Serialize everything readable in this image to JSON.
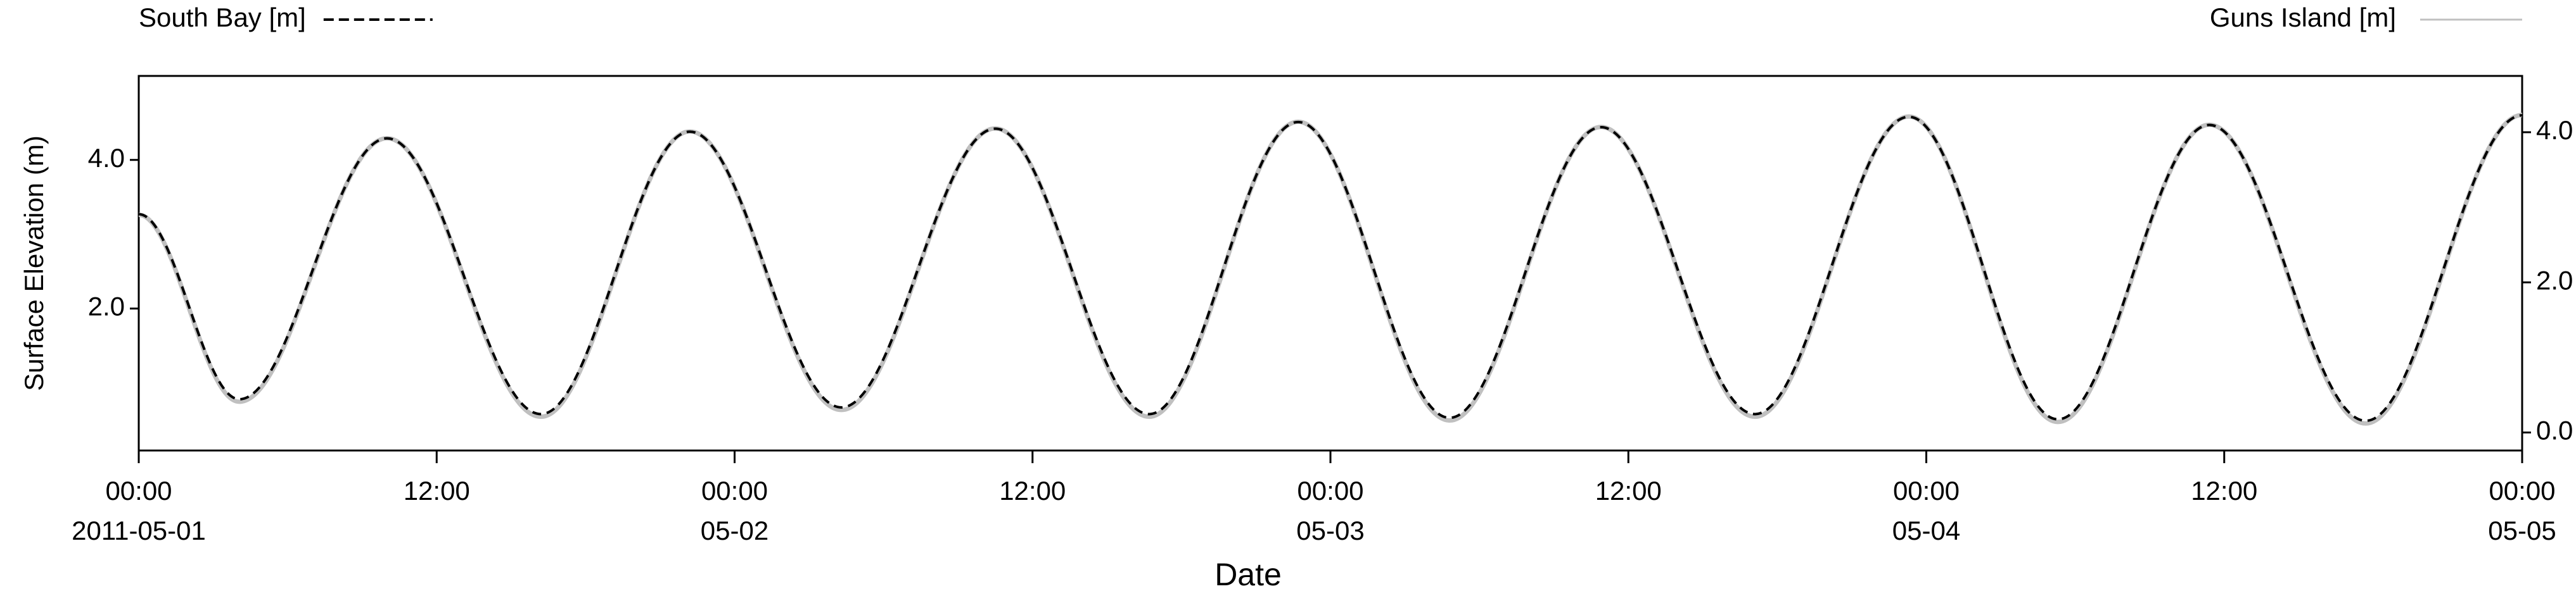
{
  "chart_data": {
    "type": "line",
    "y_label": "Surface Elevation (m)",
    "x_label": "Date",
    "x": [
      0,
      4.05,
      10.0,
      16.2,
      22.2,
      28.3,
      34.5,
      40.7,
      46.7,
      52.8,
      58.9,
      65.1,
      71.3,
      77.3,
      83.4,
      89.7,
      96
    ],
    "xlim": [
      0,
      96
    ],
    "xticks": [
      {
        "value": 0,
        "label": "00:00",
        "date": "2011-05-01"
      },
      {
        "value": 12,
        "label": "12:00"
      },
      {
        "value": 24,
        "label": "00:00",
        "date": "05-02"
      },
      {
        "value": 36,
        "label": "12:00"
      },
      {
        "value": 48,
        "label": "00:00",
        "date": "05-03"
      },
      {
        "value": 60,
        "label": "12:00"
      },
      {
        "value": 72,
        "label": "00:00",
        "date": "05-04"
      },
      {
        "value": 84,
        "label": "12:00"
      },
      {
        "value": 96,
        "label": "00:00",
        "date": "05-05"
      }
    ],
    "ylim": [
      0.09,
      5.13
    ],
    "yticks": [
      {
        "value": 2,
        "label": "2.0"
      },
      {
        "value": 4,
        "label": "4.0"
      }
    ],
    "y2lim": [
      -0.24,
      4.75
    ],
    "y2ticks": [
      {
        "value": 0,
        "label": "0.0"
      },
      {
        "value": 2,
        "label": "2.0"
      },
      {
        "value": 4,
        "label": "4.0"
      }
    ],
    "series": [
      {
        "name": "Guns Island [m]",
        "color": "#c0c0c0",
        "dash": "solid",
        "axis": "y2",
        "legend": "right",
        "values": [
          2.9,
          0.41,
          3.92,
          0.21,
          4.01,
          0.3,
          4.05,
          0.21,
          4.14,
          0.16,
          4.07,
          0.21,
          4.21,
          0.14,
          4.1,
          0.12,
          4.23
        ]
      },
      {
        "name": "South Bay [m]",
        "color": "#000000",
        "dash": "dashed",
        "axis": "y",
        "legend": "left",
        "values": [
          3.27,
          0.78,
          4.29,
          0.58,
          4.38,
          0.67,
          4.42,
          0.58,
          4.51,
          0.53,
          4.44,
          0.58,
          4.58,
          0.51,
          4.47,
          0.49,
          4.6
        ]
      }
    ]
  }
}
